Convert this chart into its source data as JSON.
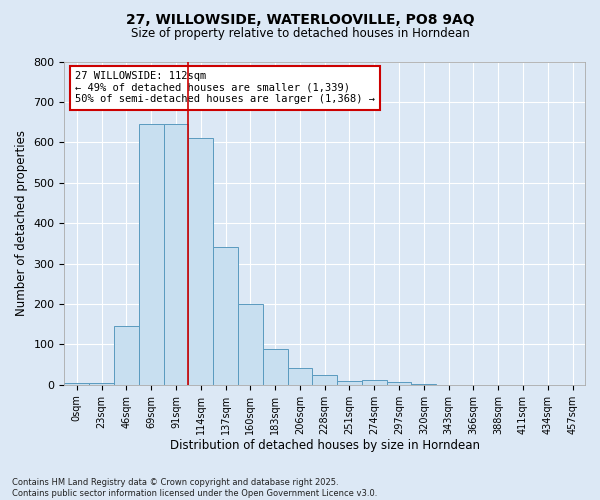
{
  "title_line1": "27, WILLOWSIDE, WATERLOOVILLE, PO8 9AQ",
  "title_line2": "Size of property relative to detached houses in Horndean",
  "xlabel": "Distribution of detached houses by size in Horndean",
  "ylabel": "Number of detached properties",
  "categories": [
    "0sqm",
    "23sqm",
    "46sqm",
    "69sqm",
    "91sqm",
    "114sqm",
    "137sqm",
    "160sqm",
    "183sqm",
    "206sqm",
    "228sqm",
    "251sqm",
    "274sqm",
    "297sqm",
    "320sqm",
    "343sqm",
    "366sqm",
    "388sqm",
    "411sqm",
    "434sqm",
    "457sqm"
  ],
  "values": [
    5,
    5,
    145,
    645,
    645,
    610,
    340,
    200,
    88,
    42,
    25,
    10,
    13,
    7,
    3,
    0,
    0,
    0,
    0,
    0,
    0
  ],
  "bar_color": "#c8dff0",
  "bar_edgecolor": "#5a9abf",
  "subject_line_idx": 5,
  "subject_line_color": "#cc0000",
  "annotation_box_text": "27 WILLOWSIDE: 112sqm\n← 49% of detached houses are smaller (1,339)\n50% of semi-detached houses are larger (1,368) →",
  "annotation_box_color": "#cc0000",
  "ylim": [
    0,
    800
  ],
  "yticks": [
    0,
    100,
    200,
    300,
    400,
    500,
    600,
    700,
    800
  ],
  "footer_line1": "Contains HM Land Registry data © Crown copyright and database right 2025.",
  "footer_line2": "Contains public sector information licensed under the Open Government Licence v3.0.",
  "background_color": "#dce8f5",
  "plot_background": "#dce8f5",
  "grid_color": "#ffffff"
}
